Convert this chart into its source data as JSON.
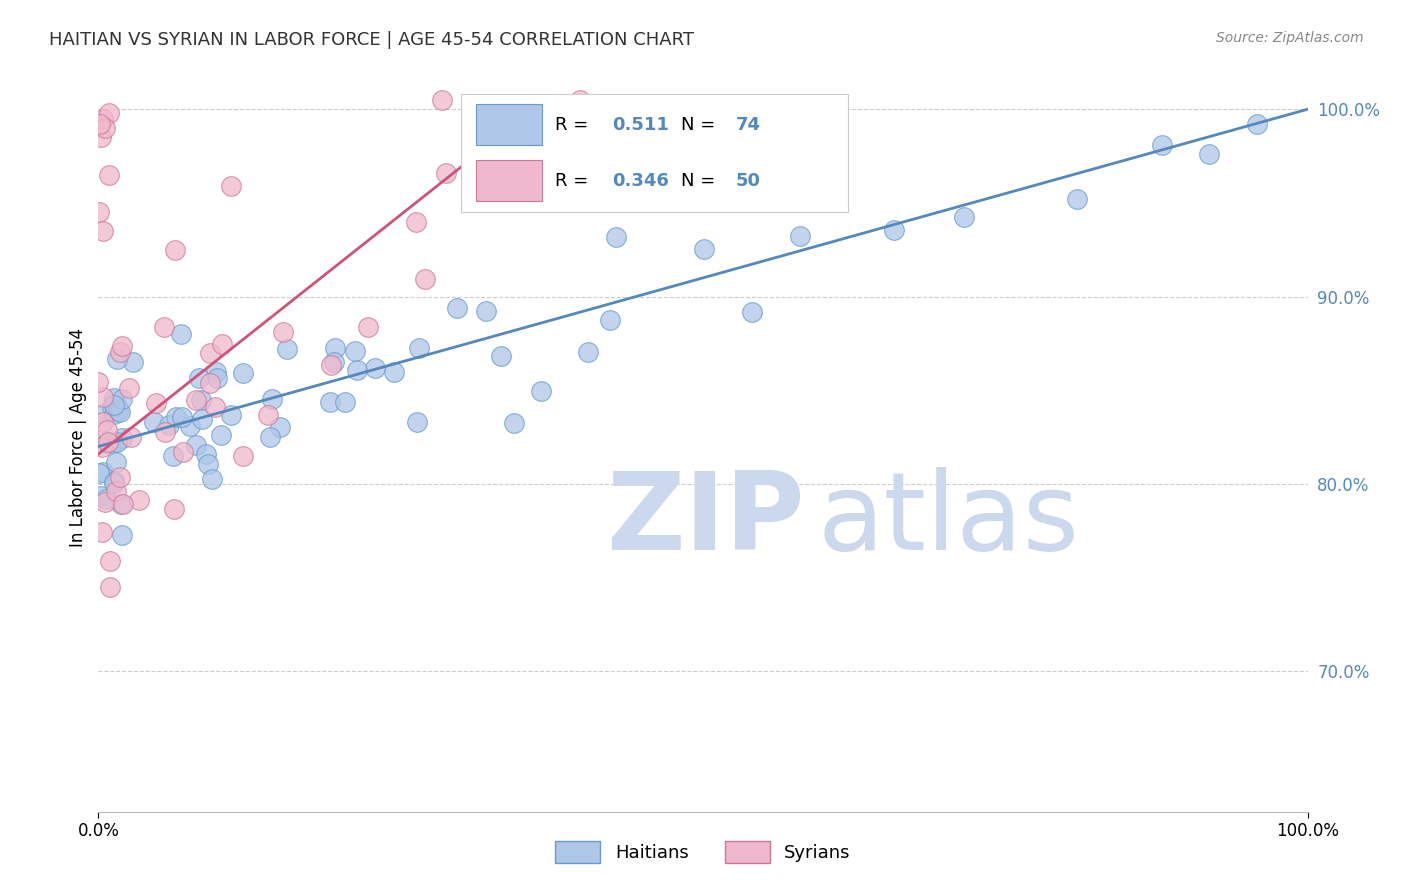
{
  "title": "HAITIAN VS SYRIAN IN LABOR FORCE | AGE 45-54 CORRELATION CHART",
  "source": "Source: ZipAtlas.com",
  "ylabel": "In Labor Force | Age 45-54",
  "xlim": [
    0.0,
    1.0
  ],
  "ylim": [
    0.625,
    1.025
  ],
  "yticks": [
    0.7,
    0.8,
    0.9,
    1.0
  ],
  "ytick_labels": [
    "70.0%",
    "80.0%",
    "90.0%",
    "100.0%"
  ],
  "haitian_color": "#aec6e8",
  "syrian_color": "#f0b8cc",
  "haitian_edge_color": "#6699cc",
  "syrian_edge_color": "#cc7799",
  "haitian_line_color": "#5588bb",
  "syrian_line_color": "#cc5577",
  "legend_r_haitian": "0.511",
  "legend_n_haitian": "74",
  "legend_r_syrian": "0.346",
  "legend_n_syrian": "50",
  "watermark_zip": "ZIP",
  "watermark_atlas": "atlas",
  "watermark_color": "#ccd8ee",
  "background_color": "#ffffff",
  "grid_color": "#cccccc",
  "title_color": "#333333",
  "source_color": "#888888",
  "ytick_color": "#5588bb",
  "blue_trend_x": [
    0.0,
    1.0
  ],
  "blue_trend_y": [
    0.82,
    1.0
  ],
  "pink_trend_x": [
    0.0,
    0.37
  ],
  "pink_trend_y": [
    0.816,
    1.005
  ]
}
